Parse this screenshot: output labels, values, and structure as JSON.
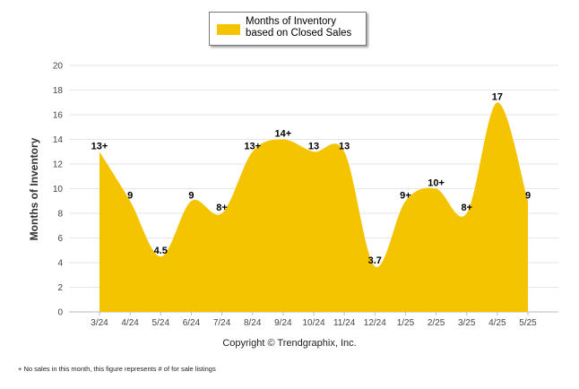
{
  "legend": {
    "label": "Months of Inventory based on Closed Sales",
    "color": "#f5c400"
  },
  "copyright": "Copyright © Trendgraphix, Inc.",
  "footnote": "+  No sales in this month, this figure represents # of for sale listings",
  "chart_data": {
    "type": "area",
    "series": [
      {
        "name": "Months of Inventory based on Closed Sales",
        "values": [
          13,
          9,
          4.5,
          9,
          8,
          13,
          14,
          13,
          13,
          3.7,
          9,
          10,
          8,
          17,
          9
        ]
      }
    ],
    "categories": [
      "3/24",
      "4/24",
      "5/24",
      "6/24",
      "7/24",
      "8/24",
      "9/24",
      "10/24",
      "11/24",
      "12/24",
      "1/25",
      "2/25",
      "3/25",
      "4/25",
      "5/25"
    ],
    "data_labels": [
      "13+",
      "9",
      "4.5",
      "9",
      "8+",
      "13+",
      "14+",
      "13",
      "13",
      "3.7",
      "9+",
      "10+",
      "8+",
      "17",
      "9"
    ],
    "ylabel": "Months of Inventory",
    "xlabel": "",
    "ylim": [
      0,
      20
    ],
    "yticks": [
      0,
      2,
      4,
      6,
      8,
      10,
      12,
      14,
      16,
      18,
      20
    ],
    "grid": true,
    "legend_position": "top-center"
  }
}
